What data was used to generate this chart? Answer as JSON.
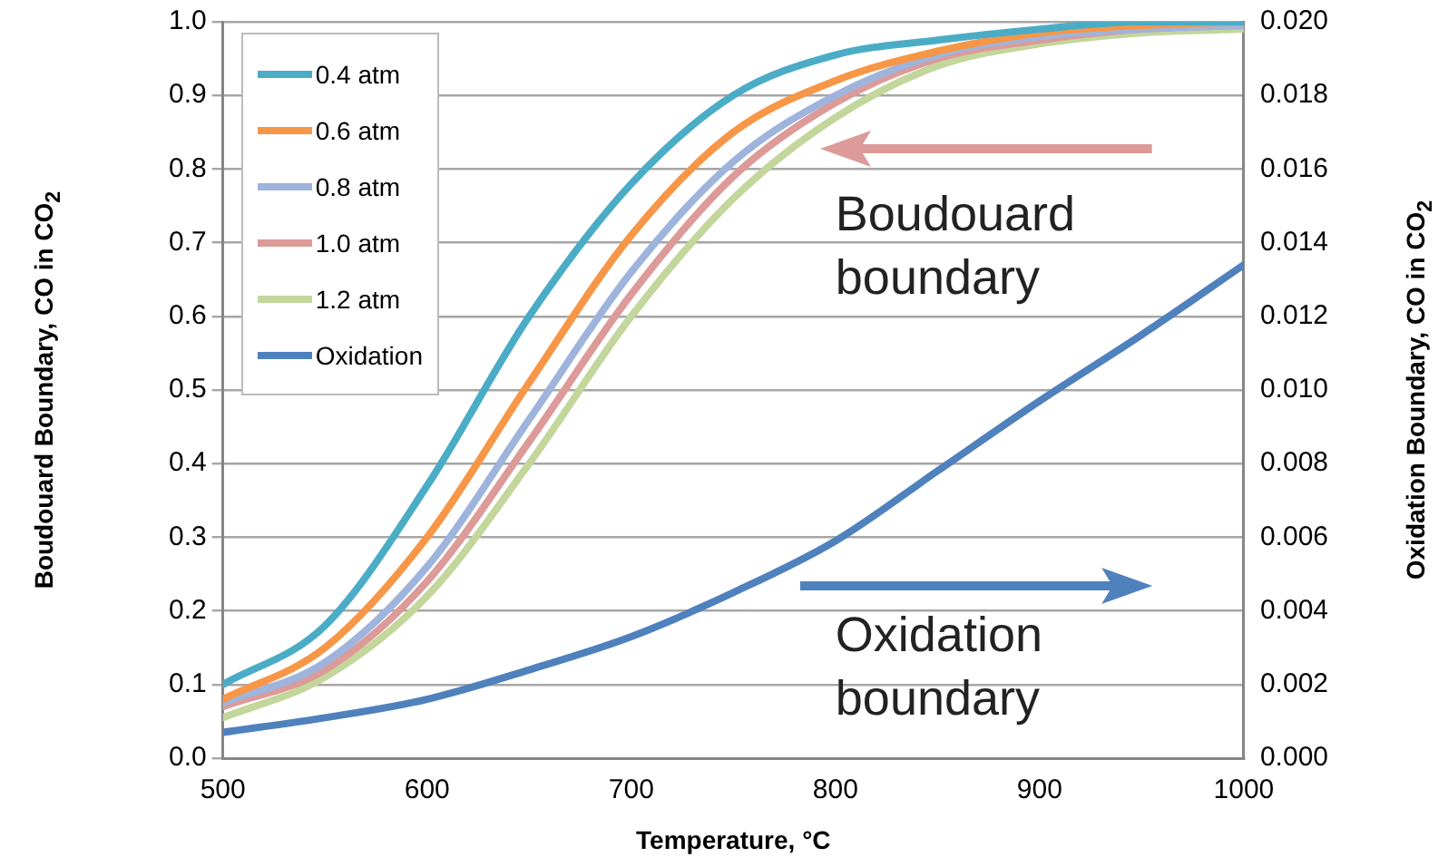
{
  "chart_data": {
    "type": "line",
    "xlabel": "Temperature, °C",
    "ylabel": "Boudouard Boundary, CO in CO$_{2}$",
    "y2label": "Oxidation Boundary, CO in CO$_{2}$",
    "x": [
      500,
      550,
      600,
      650,
      700,
      750,
      800,
      850,
      900,
      950,
      1000
    ],
    "series": [
      {
        "name": "0.4 atm",
        "color": "#4bacc6",
        "values": [
          0.1,
          0.18,
          0.37,
          0.6,
          0.78,
          0.9,
          0.955,
          0.975,
          0.99,
          1.0,
          1.0
        ]
      },
      {
        "name": "0.6 atm",
        "color": "#f79646",
        "values": [
          0.08,
          0.15,
          0.3,
          0.51,
          0.71,
          0.85,
          0.92,
          0.96,
          0.985,
          0.995,
          1.0
        ]
      },
      {
        "name": "0.8 atm",
        "color": "#9fb4dc",
        "values": [
          0.075,
          0.13,
          0.26,
          0.46,
          0.66,
          0.81,
          0.9,
          0.955,
          0.98,
          0.99,
          0.995
        ]
      },
      {
        "name": "1.0 atm",
        "color": "#dc9a98",
        "values": [
          0.07,
          0.12,
          0.24,
          0.43,
          0.63,
          0.79,
          0.89,
          0.95,
          0.975,
          0.99,
          0.995
        ]
      },
      {
        "name": "1.2 atm",
        "color": "#c3d69b",
        "values": [
          0.055,
          0.11,
          0.22,
          0.4,
          0.6,
          0.76,
          0.87,
          0.94,
          0.97,
          0.985,
          0.99
        ]
      },
      {
        "name": "Oxidation",
        "color": "#4f81bd",
        "axis": "y2",
        "values": [
          0.0007,
          0.0011,
          0.0016,
          0.0024,
          0.0033,
          0.0045,
          0.0059,
          0.0078,
          0.0097,
          0.0115,
          0.0134
        ]
      }
    ],
    "xlim": [
      500,
      1000
    ],
    "xticks": [
      500,
      600,
      700,
      800,
      900,
      1000
    ],
    "ylim": [
      0,
      1
    ],
    "yticks": [
      {
        "value": 0,
        "label": "0.0"
      },
      0.1,
      0.2,
      0.3,
      0.4,
      0.5,
      0.6,
      0.7,
      0.8,
      0.9,
      {
        "value": 1,
        "label": "1.0"
      }
    ],
    "y2lim": [
      0,
      0.02
    ],
    "y2ticks": [
      {
        "value": 0,
        "label": "0.000"
      },
      {
        "value": 0.002,
        "label": "0.002"
      },
      {
        "value": 0.004,
        "label": "0.004"
      },
      {
        "value": 0.006,
        "label": "0.006"
      },
      {
        "value": 0.008,
        "label": "0.008"
      },
      {
        "value": 0.01,
        "label": "0.010"
      },
      {
        "value": 0.012,
        "label": "0.012"
      },
      {
        "value": 0.014,
        "label": "0.014"
      },
      {
        "value": 0.016,
        "label": "0.016"
      },
      {
        "value": 0.018,
        "label": "0.018"
      },
      {
        "value": 0.02,
        "label": "0.020"
      }
    ],
    "annotations": [
      "Boudouard boundary",
      "Oxidation boundary"
    ],
    "grid": "y",
    "legend": "top left",
    "marker": "none",
    "line_style": "solid"
  }
}
